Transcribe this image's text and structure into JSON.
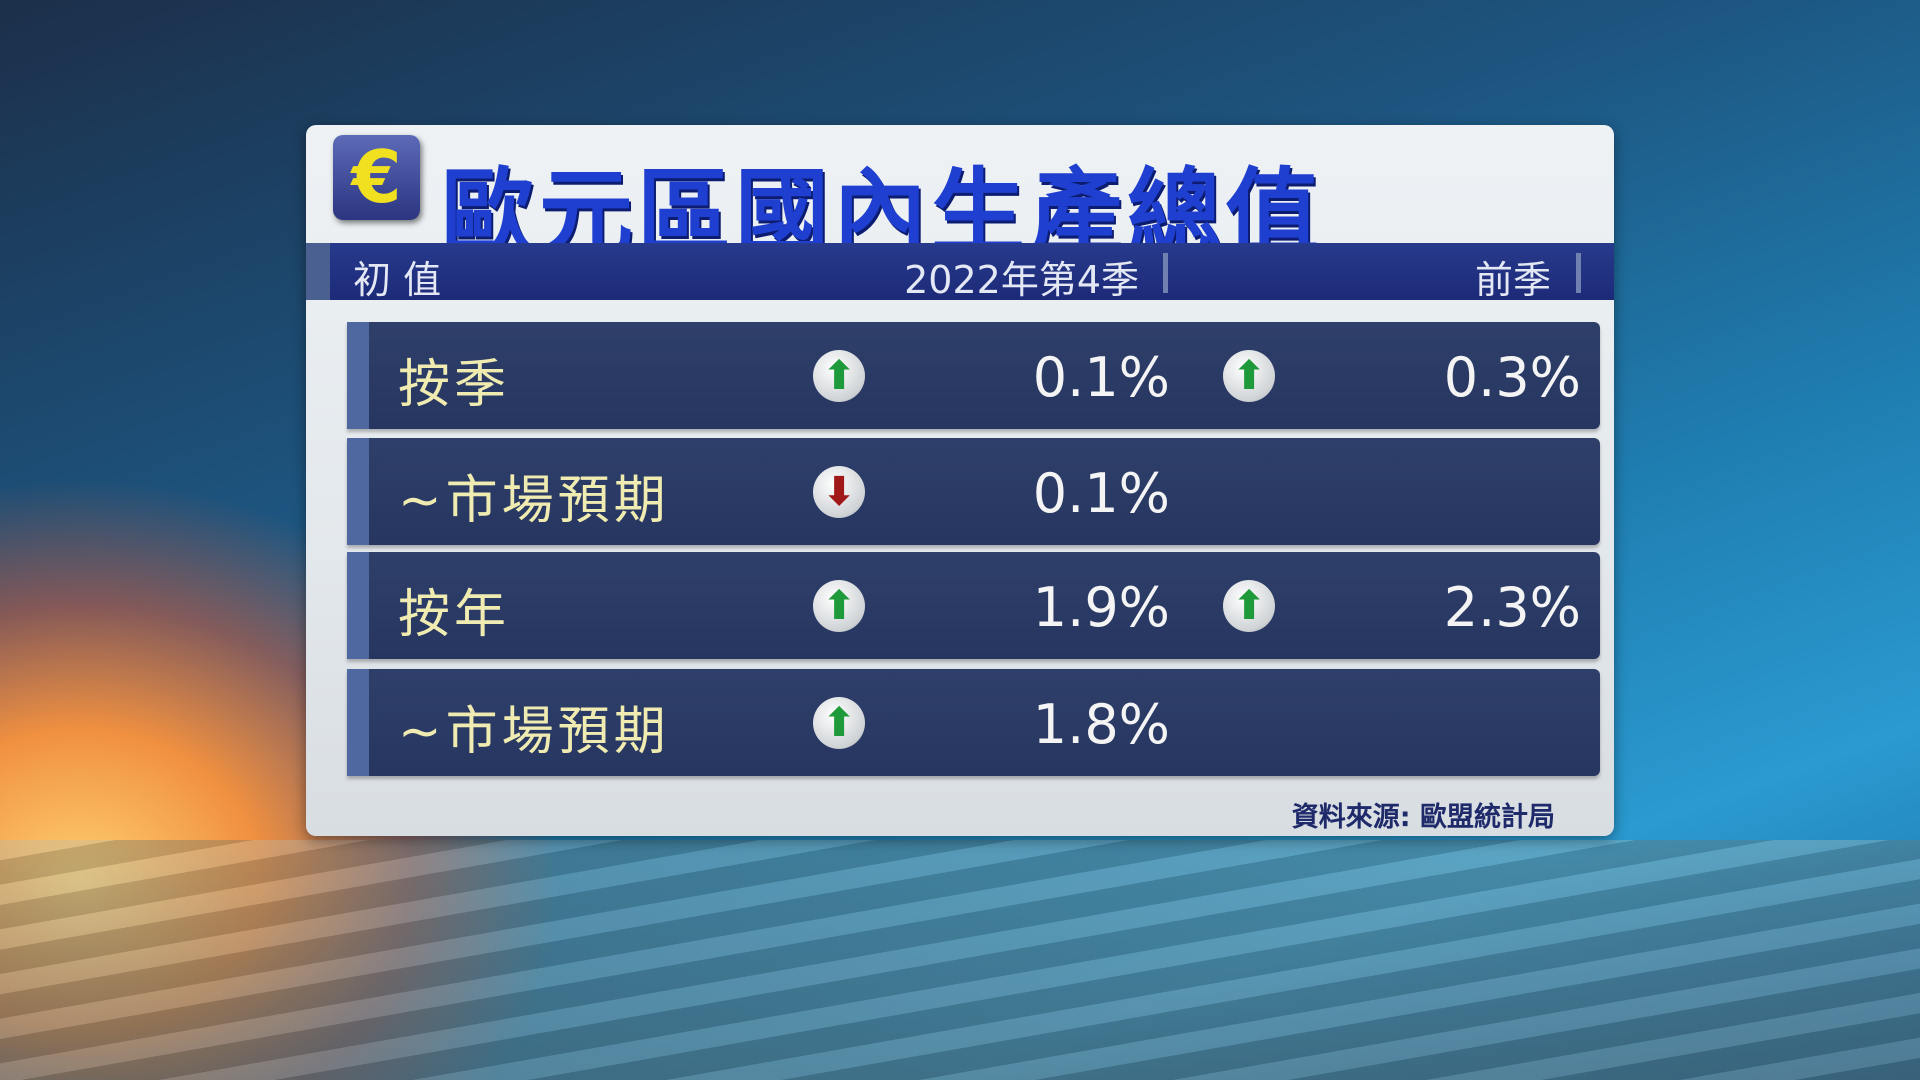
{
  "title": "歐元區國內生產總值",
  "logo_icon": "euro-icon",
  "logo_symbol": "€",
  "header": {
    "left": "初 值",
    "current": "2022年第4季",
    "previous": "前季"
  },
  "rows": [
    {
      "label": "按季",
      "current_dir": "up",
      "current": "0.1%",
      "previous_dir": "up",
      "previous": "0.3%"
    },
    {
      "label": "~市場預期",
      "current_dir": "down",
      "current": "0.1%"
    },
    {
      "label": "按年",
      "current_dir": "up",
      "current": "1.9%",
      "previous_dir": "up",
      "previous": "2.3%"
    },
    {
      "label": "~市場預期",
      "current_dir": "up",
      "current": "1.8%"
    }
  ],
  "arrows": {
    "up": "⬆",
    "down": "⬇"
  },
  "source": "資料來源: 歐盟統計局",
  "colors": {
    "title": "#1f3fd0",
    "up": "#1f9a3a",
    "down": "#a01818",
    "label": "#f0ebb0"
  }
}
